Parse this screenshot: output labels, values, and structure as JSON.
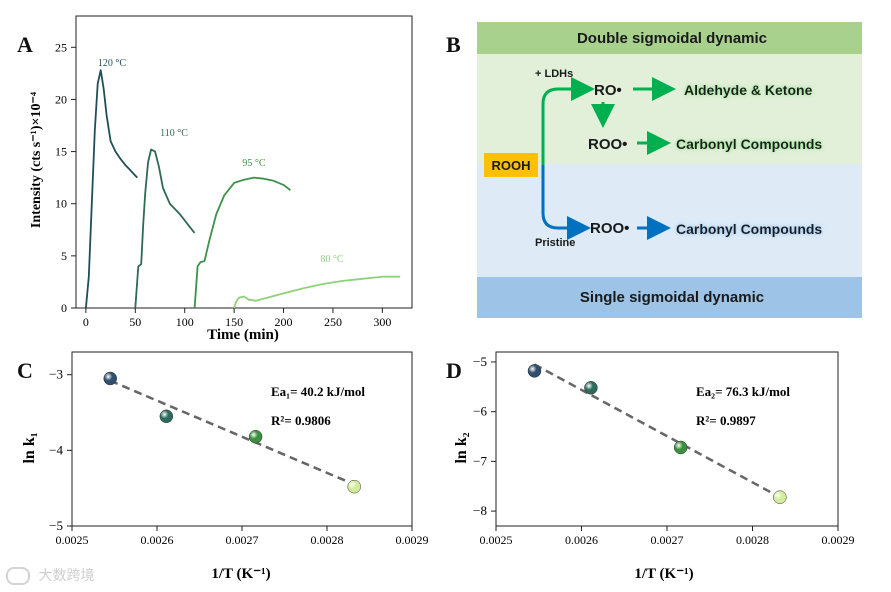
{
  "panels": {
    "A": {
      "letter": "A"
    },
    "B": {
      "letter": "B"
    },
    "C": {
      "letter": "C"
    },
    "D": {
      "letter": "D"
    }
  },
  "chart_data": [
    {
      "id": "A",
      "type": "line",
      "xlabel": "Time (min)",
      "ylabel": "Intensity (cts s⁻¹)×10⁻⁴",
      "xlim": [
        -10,
        330
      ],
      "ylim": [
        0,
        28
      ],
      "xticks": [
        0,
        50,
        100,
        150,
        200,
        250,
        300
      ],
      "yticks": [
        0,
        5,
        10,
        15,
        20,
        25
      ],
      "series": [
        {
          "name": "120 °C",
          "color": "#1f4e5a",
          "x": [
            0,
            3,
            6,
            9,
            12,
            15,
            18,
            21,
            25,
            30,
            35,
            40,
            45,
            48,
            52
          ],
          "y": [
            0,
            3,
            10,
            17,
            21.5,
            22.8,
            21,
            18.5,
            16,
            15,
            14.3,
            13.7,
            13.2,
            12.9,
            12.5
          ]
        },
        {
          "name": "110 °C",
          "color": "#2e6b4f",
          "x": [
            50,
            53,
            56,
            58,
            60,
            63,
            66,
            70,
            74,
            78,
            85,
            95,
            105,
            110
          ],
          "y": [
            0,
            4,
            4.2,
            8,
            11,
            14,
            15.2,
            15,
            13.5,
            11.5,
            10,
            9,
            7.8,
            7.2
          ]
        },
        {
          "name": "95 °C",
          "color": "#3d9148",
          "x": [
            110,
            113,
            116,
            120,
            125,
            132,
            140,
            150,
            160,
            170,
            180,
            190,
            200,
            207
          ],
          "y": [
            0,
            4,
            4.4,
            4.5,
            6.5,
            9,
            10.8,
            12,
            12.3,
            12.5,
            12.4,
            12.2,
            11.8,
            11.3
          ]
        },
        {
          "name": "80 °C",
          "color": "#8fd07a",
          "x": [
            150,
            152,
            155,
            160,
            165,
            172,
            180,
            200,
            220,
            240,
            260,
            280,
            300,
            318
          ],
          "y": [
            0,
            0.6,
            1.0,
            1.1,
            0.8,
            0.7,
            0.9,
            1.4,
            1.9,
            2.3,
            2.6,
            2.8,
            3.0,
            3.0
          ]
        }
      ],
      "annotations": [
        "120 °C",
        "110 °C",
        "95 °C",
        "80 °C"
      ]
    },
    {
      "id": "C",
      "type": "scatter",
      "xlabel": "1/T (K⁻¹)",
      "ylabel": "ln k₁",
      "xlim": [
        0.0025,
        0.0029
      ],
      "ylim": [
        -5,
        -2.7
      ],
      "xticks": [
        "0.0025",
        "0.0026",
        "0.0027",
        "0.0028",
        "0.0029"
      ],
      "yticks": [
        "-5",
        "-4",
        "-3"
      ],
      "points": [
        {
          "x": 0.002545,
          "y": -3.05,
          "color": "#2f4f6f"
        },
        {
          "x": 0.002611,
          "y": -3.55,
          "color": "#2c6a5c"
        },
        {
          "x": 0.002716,
          "y": -3.82,
          "color": "#3b8f3e"
        },
        {
          "x": 0.002832,
          "y": -4.48,
          "color": "#d3ec9a"
        }
      ],
      "fit": {
        "x": [
          0.002545,
          0.002832
        ],
        "y": [
          -3.08,
          -4.45
        ]
      },
      "annotation_ea": "Ea₁= 40.2 kJ/mol",
      "annotation_r2": "R²= 0.9806"
    },
    {
      "id": "D",
      "type": "scatter",
      "xlabel": "1/T (K⁻¹)",
      "ylabel": "ln k₂",
      "xlim": [
        0.0025,
        0.0029
      ],
      "ylim": [
        -8.3,
        -4.8
      ],
      "xticks": [
        "0.0025",
        "0.0026",
        "0.0027",
        "0.0028",
        "0.0029"
      ],
      "yticks": [
        "-8",
        "-7",
        "-6",
        "-5"
      ],
      "points": [
        {
          "x": 0.002545,
          "y": -5.18,
          "color": "#2f4f6f"
        },
        {
          "x": 0.002611,
          "y": -5.52,
          "color": "#2c6a5c"
        },
        {
          "x": 0.002716,
          "y": -6.72,
          "color": "#3b8f3e"
        },
        {
          "x": 0.002832,
          "y": -7.72,
          "color": "#d3ec9a"
        }
      ],
      "fit": {
        "x": [
          0.002545,
          0.002832
        ],
        "y": [
          -5.05,
          -7.72
        ]
      },
      "annotation_ea": "Ea₂= 76.3 kJ/mol",
      "annotation_r2": "R²= 0.9897"
    }
  ],
  "diagram_B": {
    "top_band": "Double sigmoidal dynamic",
    "bottom_band": "Single sigmoidal dynamic",
    "rooh": "ROOH",
    "ldhs_label": "+ LDHs",
    "pristine_label": "Pristine",
    "ro_radical": "RO•",
    "roo_radical_upper": "ROO•",
    "roo_radical_lower": "ROO•",
    "product_aldehyde": "Aldehyde &  Ketone",
    "product_carbonyl_upper": "Carbonyl Compounds",
    "product_carbonyl_lower": "Carbonyl Compounds",
    "colors": {
      "top_band": "#a9d18e",
      "top_bg": "#e2f0d9",
      "bottom_bg": "#deebf7",
      "bottom_band": "#9dc3e6",
      "rooh_bg": "#ffc000",
      "green_arrow": "#00b050",
      "blue_arrow": "#0070c0"
    }
  },
  "watermark": "大数跨境"
}
